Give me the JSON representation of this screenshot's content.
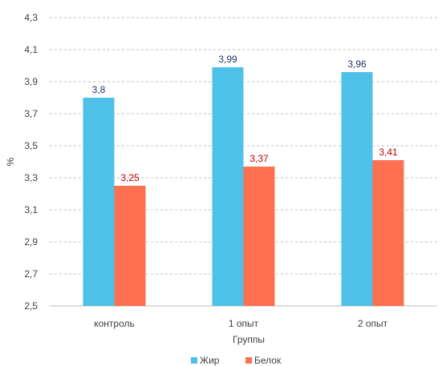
{
  "chart_data": {
    "type": "bar",
    "categories": [
      "контроль",
      "1 опыт",
      "2 опыт"
    ],
    "series": [
      {
        "name": "Жир",
        "values": [
          3.8,
          3.99,
          3.96
        ],
        "value_labels": [
          "3,8",
          "3,99",
          "3,96"
        ],
        "color": "#4dc1e8",
        "label_color": "#1f3864"
      },
      {
        "name": "Белок",
        "values": [
          3.25,
          3.37,
          3.41
        ],
        "value_labels": [
          "3,25",
          "3,37",
          "3,41"
        ],
        "color": "#ff7050",
        "label_color": "#c00000"
      }
    ],
    "xlabel": "Группы",
    "ylabel": "%",
    "ylim": [
      2.5,
      4.3
    ],
    "yticks": [
      2.5,
      2.7,
      2.9,
      3.1,
      3.3,
      3.5,
      3.7,
      3.9,
      4.1,
      4.3
    ],
    "ytick_labels": [
      "2,5",
      "2,7",
      "2,9",
      "3,1",
      "3,3",
      "3,5",
      "3,7",
      "3,9",
      "4,1",
      "4,3"
    ],
    "grid": "horizontal dashed",
    "legend_position": "bottom"
  }
}
